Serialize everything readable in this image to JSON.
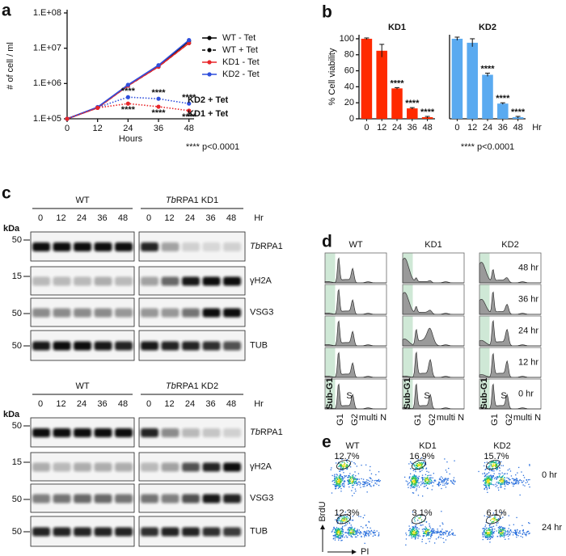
{
  "chart_data": [
    {
      "type": "line",
      "panel": "a",
      "y_label": "# of cell / ml",
      "x_label": "Hours",
      "x": [
        0,
        12,
        24,
        36,
        48
      ],
      "xlim": [
        0,
        50
      ],
      "xticks": [
        0,
        12,
        24,
        36,
        48
      ],
      "log_scale": true,
      "ylim": [
        100000,
        100000000
      ],
      "yticks": [
        {
          "value": 100000,
          "label": "1.E+05"
        },
        {
          "value": 1000000,
          "label": "1.E+06"
        },
        {
          "value": 10000000,
          "label": "1.E+07"
        },
        {
          "value": 100000000,
          "label": "1.E+08"
        }
      ],
      "series": [
        {
          "name": "WT - Tet",
          "color": "#000000",
          "dash": "solid",
          "values": [
            100000,
            210000,
            900000,
            3200000,
            16000000
          ]
        },
        {
          "name": "WT + Tet",
          "color": "#000000",
          "dash": "dashed",
          "values": [
            100000,
            205000,
            870000,
            3000000,
            14000000
          ]
        },
        {
          "name": "KD1 - Tet",
          "color": "#e8262a",
          "dash": "solid",
          "values": [
            100000,
            205000,
            870000,
            3000000,
            14000000
          ]
        },
        {
          "name": "KD2 - Tet",
          "color": "#2f4fdc",
          "dash": "solid",
          "values": [
            100000,
            215000,
            920000,
            3300000,
            17000000
          ]
        },
        {
          "name": "KD2 + Tet",
          "color": "#2f4fdc",
          "dash": "dotted",
          "values": [
            100000,
            210000,
            410000,
            370000,
            270000
          ],
          "point_labels": [
            null,
            null,
            "****",
            "****",
            "****"
          ]
        },
        {
          "name": "KD1 + Tet",
          "color": "#e8262a",
          "dash": "dotted",
          "values": [
            100000,
            205000,
            270000,
            220000,
            170000
          ],
          "point_labels": [
            null,
            null,
            "****",
            "****",
            "****"
          ]
        }
      ],
      "note": "**** p<0.0001"
    },
    {
      "type": "bar",
      "panel": "b",
      "title": "KD1",
      "color": "#ff2a00",
      "y_label": "% Cell viability",
      "categories": [
        "0",
        "12",
        "24",
        "36",
        "48"
      ],
      "values": [
        100,
        85,
        38,
        13,
        2
      ],
      "errors": [
        1,
        8,
        1,
        1,
        1
      ],
      "point_labels": [
        null,
        null,
        "****",
        "****",
        "****"
      ],
      "ylim": [
        0,
        105
      ],
      "yticks": [
        0,
        20,
        40,
        60,
        80,
        100
      ]
    },
    {
      "type": "bar",
      "title": "KD2",
      "color": "#5aaaf0",
      "x_label": "Hr",
      "categories": [
        "0",
        "12",
        "24",
        "36",
        "48"
      ],
      "values": [
        100,
        95,
        55,
        19,
        2
      ],
      "errors": [
        2,
        5,
        2,
        1,
        1
      ],
      "point_labels": [
        null,
        null,
        "****",
        "****",
        "****"
      ],
      "ylim": [
        0,
        105
      ],
      "note": "**** p<0.0001"
    }
  ],
  "panels": {
    "c": {
      "letter": "c",
      "kda_label": "kDa",
      "hr_label": "Hr",
      "blocks": [
        {
          "groups": [
            {
              "label": "WT",
              "lanes": [
                "0",
                "12",
                "24",
                "36",
                "48"
              ]
            },
            {
              "label_italic": "Tb",
              "label": "RPA1 KD1",
              "lanes": [
                "0",
                "12",
                "24",
                "36",
                "48"
              ]
            }
          ],
          "rows": [
            {
              "label_italic": "Tb",
              "label": "RPA1",
              "kda": "50"
            },
            {
              "label": "γH2A",
              "kda": "15"
            },
            {
              "label": "VSG3",
              "kda": "50"
            },
            {
              "label": "TUB",
              "kda": "50"
            }
          ]
        },
        {
          "groups": [
            {
              "label": "WT",
              "lanes": [
                "0",
                "12",
                "24",
                "36",
                "48"
              ]
            },
            {
              "label_italic": "Tb",
              "label": "RPA1 KD2",
              "lanes": [
                "0",
                "12",
                "24",
                "36",
                "48"
              ]
            }
          ],
          "rows": [
            {
              "label_italic": "Tb",
              "label": "RPA1",
              "kda": "50"
            },
            {
              "label": "γH2A",
              "kda": "15"
            },
            {
              "label": "VSG3",
              "kda": "50"
            },
            {
              "label": "TUB",
              "kda": "50"
            }
          ]
        }
      ]
    },
    "d": {
      "letter": "d",
      "columns": [
        "WT",
        "KD1",
        "KD2"
      ],
      "rows": [
        "48 hr",
        "36 hr",
        "24 hr",
        "12 hr",
        "0 hr"
      ],
      "gate_label": "Sub-G1",
      "s_label": "S",
      "axis_labels": [
        "G1",
        "G2",
        "multi N"
      ]
    },
    "e": {
      "letter": "e",
      "columns": [
        "WT",
        "KD1",
        "KD2"
      ],
      "rows": [
        "0 hr",
        "24 hr"
      ],
      "gates": [
        [
          "12.7%",
          "16.9%",
          "15.7%"
        ],
        [
          "12.3%",
          "3.1%",
          "6.1%"
        ]
      ],
      "y_label": "BrdU",
      "x_label": "PI"
    }
  }
}
